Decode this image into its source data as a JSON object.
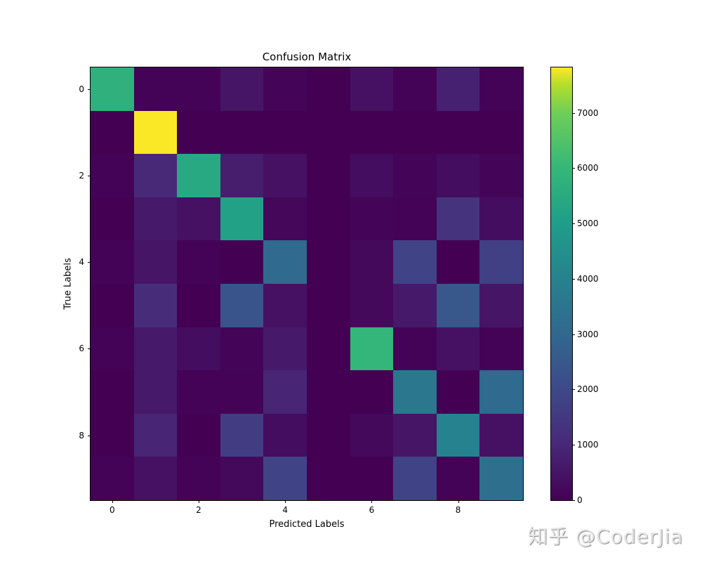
{
  "chart_data": {
    "type": "heatmap",
    "title": "Confusion Matrix",
    "xlabel": "Predicted Labels",
    "ylabel": "True Labels",
    "x_categories": [
      0,
      1,
      2,
      3,
      4,
      5,
      6,
      7,
      8,
      9
    ],
    "y_categories": [
      0,
      1,
      2,
      3,
      4,
      5,
      6,
      7,
      8,
      9
    ],
    "x_tick_labels": [
      "0",
      "2",
      "4",
      "6",
      "8"
    ],
    "y_tick_labels": [
      "0",
      "2",
      "4",
      "6",
      "8"
    ],
    "colormap": "viridis",
    "colorbar": {
      "range": [
        0,
        7820
      ],
      "ticks": [
        "0",
        "1000",
        "2000",
        "3000",
        "4000",
        "5000",
        "6000",
        "7000"
      ]
    },
    "values": [
      [
        5600,
        50,
        50,
        500,
        100,
        0,
        400,
        50,
        800,
        50
      ],
      [
        0,
        7800,
        0,
        0,
        0,
        0,
        0,
        0,
        0,
        0
      ],
      [
        50,
        1000,
        5300,
        700,
        400,
        0,
        300,
        100,
        300,
        100
      ],
      [
        0,
        600,
        400,
        5000,
        150,
        0,
        100,
        50,
        1300,
        300
      ],
      [
        50,
        500,
        50,
        0,
        3000,
        0,
        200,
        1800,
        0,
        1700
      ],
      [
        0,
        1100,
        0,
        2300,
        400,
        0,
        200,
        600,
        2400,
        500
      ],
      [
        50,
        600,
        300,
        100,
        600,
        0,
        5800,
        50,
        400,
        50
      ],
      [
        0,
        600,
        50,
        50,
        900,
        0,
        0,
        3500,
        0,
        3000
      ],
      [
        0,
        900,
        0,
        1600,
        300,
        0,
        200,
        500,
        3900,
        400
      ],
      [
        50,
        400,
        50,
        200,
        1800,
        0,
        0,
        1800,
        50,
        3200
      ]
    ],
    "grid": false,
    "legend_position": "right (colorbar)"
  },
  "watermark": "知乎 @CoderJia"
}
